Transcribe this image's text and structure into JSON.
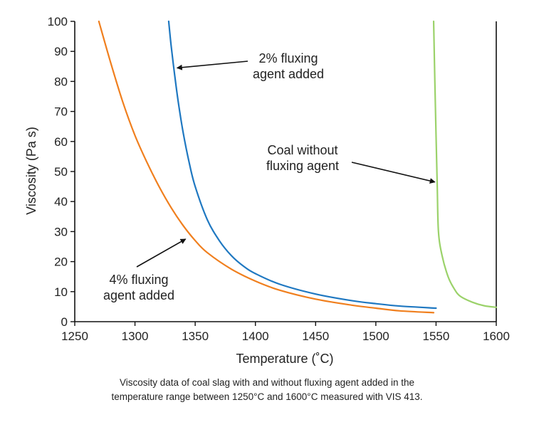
{
  "chart_data": {
    "type": "line",
    "title": "",
    "xlabel": "Temperature (˚C)",
    "ylabel": "Viscosity (Pa s)",
    "xlim": [
      1250,
      1600
    ],
    "ylim": [
      0,
      100
    ],
    "x_ticks": [
      1250,
      1300,
      1350,
      1400,
      1450,
      1500,
      1550,
      1600
    ],
    "y_ticks": [
      0,
      10,
      20,
      30,
      40,
      50,
      60,
      70,
      80,
      90,
      100
    ],
    "grid": false,
    "series": [
      {
        "name": "4% fluxing agent added",
        "color": "#f07f1e",
        "x": [
          1270,
          1280,
          1290,
          1300,
          1310,
          1320,
          1330,
          1340,
          1350,
          1360,
          1380,
          1400,
          1420,
          1450,
          1480,
          1500,
          1520,
          1548
        ],
        "y": [
          100,
          86,
          73,
          62,
          53,
          45,
          38,
          32,
          27,
          23,
          17.5,
          13.5,
          10.5,
          7.5,
          5.5,
          4.5,
          3.6,
          3.0
        ]
      },
      {
        "name": "2% fluxing agent added",
        "color": "#1f78c1",
        "x": [
          1328,
          1330,
          1333,
          1336,
          1340,
          1345,
          1350,
          1360,
          1370,
          1380,
          1390,
          1400,
          1420,
          1450,
          1480,
          1500,
          1520,
          1550
        ],
        "y": [
          100,
          92,
          82,
          73,
          63,
          53,
          45,
          34,
          27,
          22,
          18.5,
          16,
          12.5,
          9.2,
          7,
          6,
          5.2,
          4.5
        ]
      },
      {
        "name": "Coal without fluxing agent",
        "color": "#9bd26a",
        "x": [
          1548,
          1549,
          1550,
          1551,
          1552,
          1555,
          1560,
          1565,
          1570,
          1580,
          1590,
          1600
        ],
        "y": [
          100,
          80,
          62,
          45,
          30,
          22,
          15,
          11,
          8.5,
          6.5,
          5.3,
          4.8
        ]
      }
    ],
    "annotations": [
      {
        "lines": [
          "2% fluxing",
          "agent added"
        ],
        "target": {
          "x": 1335,
          "y": 84.5
        }
      },
      {
        "lines": [
          "Coal without",
          "fluxing agent"
        ],
        "target": {
          "x": 1549,
          "y": 46.5
        }
      },
      {
        "lines": [
          "4% fluxing",
          "agent added"
        ],
        "target": {
          "x": 1342,
          "y": 27.5
        }
      }
    ]
  },
  "caption": {
    "line1": "Viscosity data of coal slag with and without fluxing agent added in the",
    "line2": "temperature range between 1250°C and 1600°C measured with VIS 413."
  }
}
